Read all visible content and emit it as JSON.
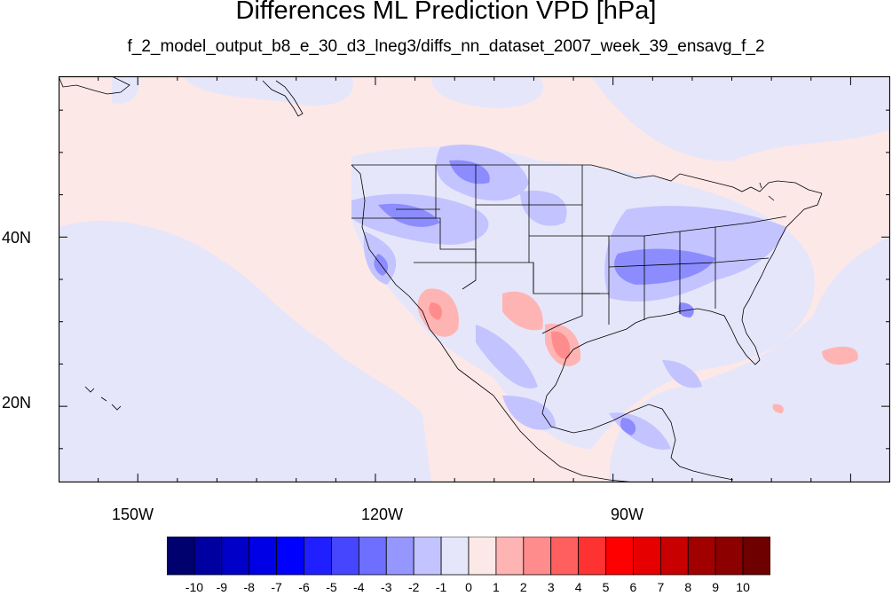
{
  "title": "Differences ML Prediction VPD [hPa]",
  "subtitle": "f_2_model_output_b8_e_30_d3_lneg3/diffs_nn_dataset_2007_week_39_ensavg_f_2",
  "map": {
    "projection": "cylindrical-equidistant",
    "lon_range": [
      -160,
      -55
    ],
    "lat_range": [
      11,
      59
    ],
    "lon_ticks": [
      {
        "value": -150,
        "label": "150W"
      },
      {
        "value": -120,
        "label": "120W"
      },
      {
        "value": -90,
        "label": "90W"
      }
    ],
    "lat_ticks": [
      {
        "value": 40,
        "label": "40N"
      },
      {
        "value": 20,
        "label": "20N"
      }
    ],
    "background_field_color": "#fde8e8",
    "negative_field_color": "#e6e6fa"
  },
  "colorbar": {
    "labels": [
      "-10",
      "-9",
      "-8",
      "-7",
      "-6",
      "-5",
      "-4",
      "-3",
      "-2",
      "-1",
      "0",
      "1",
      "2",
      "3",
      "4",
      "5",
      "6",
      "7",
      "8",
      "9",
      "10"
    ],
    "colors": [
      "#00006e",
      "#0000a0",
      "#0000c8",
      "#0000e6",
      "#0000ff",
      "#1f1fff",
      "#4646ff",
      "#6e6eff",
      "#9696ff",
      "#c3c3ff",
      "#e6e6fa",
      "#fde8e8",
      "#ffb4b4",
      "#ff8c8c",
      "#ff5f5f",
      "#ff3232",
      "#ff0000",
      "#e60000",
      "#c80000",
      "#a00000",
      "#8c0000",
      "#6e0000"
    ]
  }
}
